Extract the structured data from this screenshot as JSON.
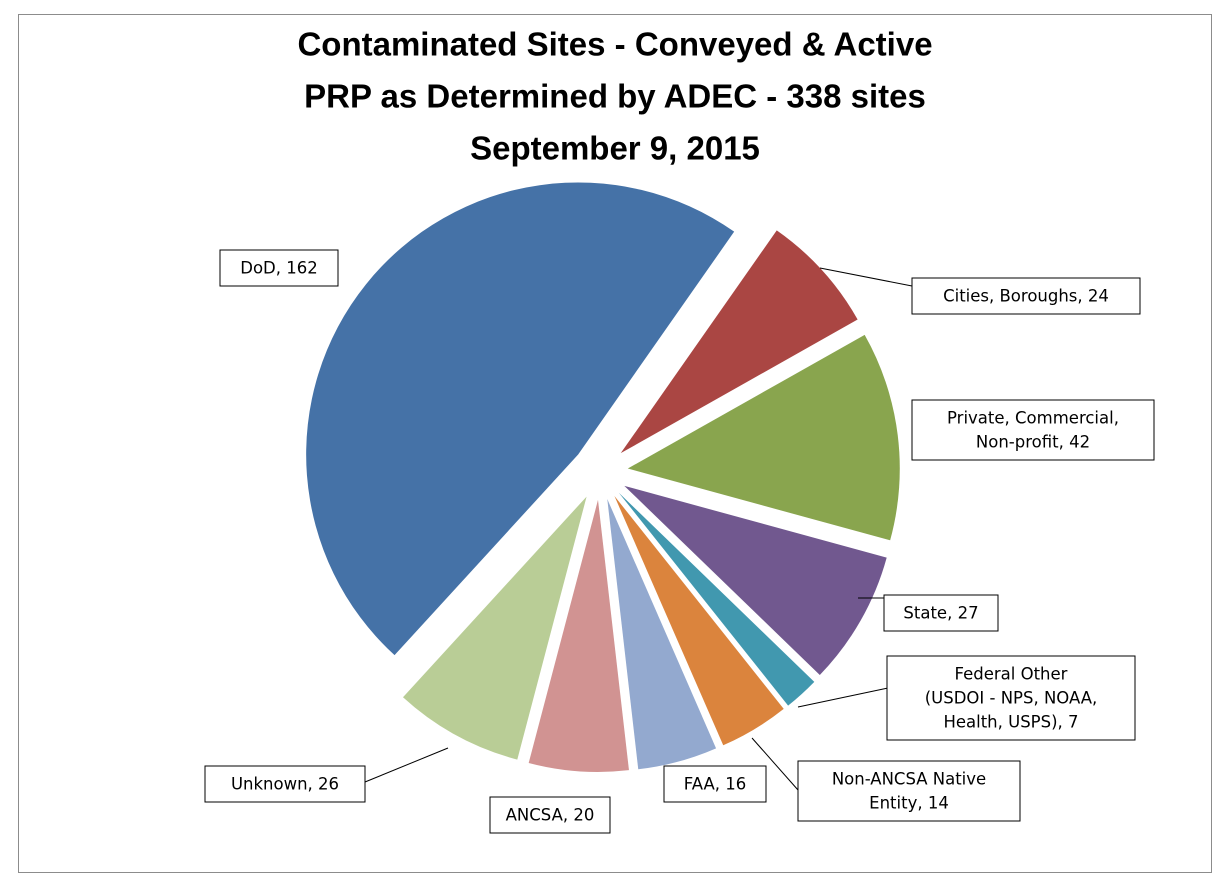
{
  "chart_data": {
    "type": "pie",
    "title": [
      "Contaminated Sites - Conveyed & Active",
      "PRP as Determined by ADEC - 338 sites",
      "September 9, 2015"
    ],
    "values": [
      24,
      42,
      27,
      7,
      14,
      16,
      20,
      26,
      162
    ],
    "value_labels": [
      [
        "Cities, Boroughs, 24"
      ],
      [
        "Private, Commercial,",
        "Non-profit, 42"
      ],
      [
        "State, 27"
      ],
      [
        "Federal Other",
        "(USDOI - NPS, NOAA,",
        "Health, USPS), 7"
      ],
      [
        "Non-ANCSA Native",
        "Entity, 14"
      ],
      [
        "FAA, 16"
      ],
      [
        "ANCSA, 20"
      ],
      [
        "Unknown, 26"
      ],
      [
        "DoD, 162"
      ]
    ],
    "colors": [
      "#aa4643",
      "#89a54e",
      "#71588f",
      "#4198af",
      "#db843d",
      "#93a9cf",
      "#d19392",
      "#b9cd96",
      "#4572a7"
    ],
    "first_slice_angle": 35,
    "exploded": true
  }
}
